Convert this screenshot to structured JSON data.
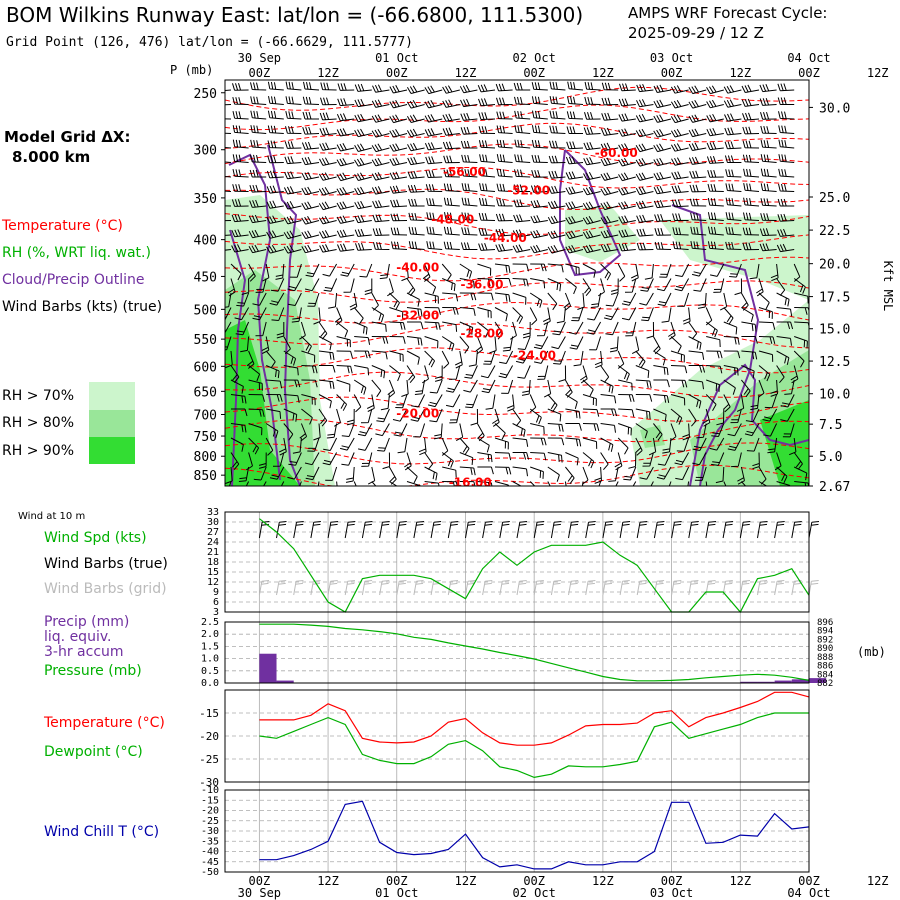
{
  "header": {
    "title": "BOM Wilkins Runway East:  lat/lon = (-66.6800, 111.5300)",
    "cycle_label": "AMPS WRF Forecast Cycle:",
    "cycle_value": "2025-09-29 / 12  Z",
    "grid_point": "Grid Point (126, 476) lat/lon = (-66.6629, 111.5777)"
  },
  "time_axis": {
    "hours": [
      "00Z",
      "12Z",
      "00Z",
      "12Z",
      "00Z",
      "12Z",
      "00Z",
      "12Z",
      "00Z",
      "12Z"
    ],
    "dates": [
      "30 Sep",
      "01 Oct",
      "02 Oct",
      "03 Oct",
      "04 Oct"
    ]
  },
  "colors": {
    "temperature": "#ff0000",
    "rh": "#00b000",
    "cloud": "#7030a0",
    "wind_chill": "#0000aa",
    "pressure": "#00b000",
    "precip": "#7030a0",
    "grid": "#aaaaaa"
  },
  "legend": {
    "model_grid": "Model Grid ΔX:",
    "model_dx": "8.000 km",
    "temperature": "Temperature (°C)",
    "rh": "RH (%, WRT liq. wat.)",
    "cloud": "Cloud/Precip Outline",
    "wind_barbs": "Wind Barbs (kts) (true)",
    "rh70": "RH > 70%",
    "rh80": "RH > 80%",
    "rh90": "RH > 90%"
  },
  "chart_data": [
    {
      "id": "upper-air",
      "type": "heatmap",
      "ylabel": "P (mb)",
      "y2label": "Kft MSL",
      "ylim": [
        880,
        240
      ],
      "pressure_ticks": [
        "250",
        "300",
        "350",
        "400",
        "450",
        "500",
        "550",
        "600",
        "650",
        "700",
        "750",
        "800",
        "850"
      ],
      "height_ticks": [
        {
          "p": 262,
          "label": "30.0"
        },
        {
          "p": 349,
          "label": "25.0"
        },
        {
          "p": 388,
          "label": "22.5"
        },
        {
          "p": 432,
          "label": "20.0"
        },
        {
          "p": 480,
          "label": "17.5"
        },
        {
          "p": 532,
          "label": "15.0"
        },
        {
          "p": 590,
          "label": "12.5"
        },
        {
          "p": 655,
          "label": "10.0"
        },
        {
          "p": 722,
          "label": "7.5"
        },
        {
          "p": 800,
          "label": "5.0"
        },
        {
          "p": 880,
          "label": "2.67"
        }
      ],
      "temperature_labels": [
        {
          "t": 0.67,
          "p": 303,
          "label": "-60.00"
        },
        {
          "t": 0.41,
          "p": 322,
          "label": "-56.00"
        },
        {
          "t": 0.52,
          "p": 342,
          "label": "-52.00"
        },
        {
          "t": 0.39,
          "p": 375,
          "label": "-48.00"
        },
        {
          "t": 0.48,
          "p": 398,
          "label": "-44.00"
        },
        {
          "t": 0.33,
          "p": 437,
          "label": "-40.00"
        },
        {
          "t": 0.44,
          "p": 462,
          "label": "-36.00"
        },
        {
          "t": 0.33,
          "p": 510,
          "label": "-32.00"
        },
        {
          "t": 0.44,
          "p": 540,
          "label": "-28.00"
        },
        {
          "t": 0.53,
          "p": 580,
          "label": "-24.00"
        },
        {
          "t": 0.33,
          "p": 698,
          "label": "-20.00"
        },
        {
          "t": 0.42,
          "p": 870,
          "label": "-16.00"
        }
      ]
    },
    {
      "id": "wind-10m",
      "type": "line",
      "title": "Wind at 10 m",
      "ylabel": "Wind Spd (kts)",
      "labels": [
        "Wind Spd (kts)",
        "Wind Barbs (true)",
        "Wind Barbs (grid)"
      ],
      "y_ticks": [
        "33",
        "30",
        "27",
        "24",
        "21",
        "18",
        "15",
        "12",
        "9",
        "6",
        "3"
      ],
      "ylim": [
        3,
        33
      ],
      "x": [
        0,
        3,
        6,
        9,
        12,
        15,
        18,
        21,
        24,
        27,
        30,
        33,
        36,
        39,
        42,
        45,
        48,
        51,
        54,
        57,
        60,
        63,
        66,
        69,
        72,
        75,
        78,
        81,
        84,
        87,
        90,
        93,
        96
      ],
      "values": [
        31,
        27,
        22,
        14,
        6,
        3,
        13,
        14,
        14,
        14,
        13,
        10,
        7,
        16,
        21,
        17,
        21,
        23,
        23,
        23,
        24,
        20,
        17,
        10,
        3,
        3,
        9,
        9,
        3,
        13,
        14,
        16,
        8
      ]
    },
    {
      "id": "precip-pressure",
      "type": "bar",
      "labels": [
        "Precip (mm)",
        "liq. equiv.",
        "3-hr accum",
        "Pressure (mb)"
      ],
      "y2label": "(mb)",
      "y_ticks": [
        "2.5",
        "2.0",
        "1.5",
        "1.0",
        "0.5",
        "0.0"
      ],
      "ylim": [
        0,
        2.5
      ],
      "pressure_ticks": [
        "896",
        "894",
        "892",
        "890",
        "888",
        "886",
        "884",
        "882"
      ],
      "pressure_lim": [
        882,
        896
      ],
      "x": [
        0,
        3,
        6,
        9,
        12,
        15,
        18,
        21,
        24,
        27,
        30,
        33,
        36,
        39,
        42,
        45,
        48,
        51,
        54,
        57,
        60,
        63,
        66,
        69,
        72,
        75,
        78,
        81,
        84,
        87,
        90,
        93,
        96
      ],
      "precip": [
        1.2,
        0.1,
        0,
        0,
        0,
        0,
        0,
        0,
        0,
        0,
        0,
        0,
        0,
        0,
        0,
        0,
        0,
        0,
        0,
        0,
        0,
        0,
        0,
        0,
        0,
        0,
        0,
        0,
        0.05,
        0.05,
        0.1,
        0.15,
        0.2
      ],
      "pressure": [
        895.5,
        895.5,
        895.5,
        895.3,
        895,
        894.5,
        894.2,
        893.8,
        893.3,
        892.5,
        892,
        891.2,
        890.5,
        889.8,
        889,
        888.3,
        887.5,
        886.5,
        885.5,
        884.5,
        883.5,
        882.8,
        882.5,
        882.5,
        882.6,
        882.8,
        883.2,
        883.5,
        883.8,
        884,
        883.8,
        883.3,
        882.6
      ]
    },
    {
      "id": "temperature",
      "type": "line",
      "labels": [
        "Temperature (°C)",
        "Dewpoint (°C)"
      ],
      "y_ticks": [
        "-15",
        "-20",
        "-25",
        "-30"
      ],
      "ylim": [
        -30,
        -10
      ],
      "x": [
        0,
        3,
        6,
        9,
        12,
        15,
        18,
        21,
        24,
        27,
        30,
        33,
        36,
        39,
        42,
        45,
        48,
        51,
        54,
        57,
        60,
        63,
        66,
        69,
        72,
        75,
        78,
        81,
        84,
        87,
        90,
        93,
        96
      ],
      "series": [
        {
          "name": "Temperature",
          "values": [
            -16.5,
            -16.5,
            -16.5,
            -15.5,
            -13,
            -14.5,
            -20.5,
            -21.3,
            -21.5,
            -21.3,
            -20,
            -17,
            -16.2,
            -19.3,
            -21.5,
            -22,
            -22,
            -21.5,
            -19.8,
            -17.8,
            -17.5,
            -17.5,
            -17.2,
            -15,
            -14.5,
            -18,
            -16,
            -15,
            -13.8,
            -12.5,
            -10.5,
            -10.5,
            -11.5
          ]
        },
        {
          "name": "Dewpoint",
          "values": [
            -20,
            -20.5,
            -19,
            -17.5,
            -16,
            -17.5,
            -24,
            -25.3,
            -26,
            -26,
            -24.5,
            -21.8,
            -21,
            -23.2,
            -26.7,
            -27.5,
            -29,
            -28.3,
            -26.5,
            -26.7,
            -26.7,
            -26.2,
            -25.5,
            -18,
            -17,
            -20.5,
            -19.5,
            -18.5,
            -17.5,
            -16,
            -15,
            -15,
            -15
          ]
        }
      ]
    },
    {
      "id": "wind-chill",
      "type": "line",
      "labels": [
        "Wind Chill T (°C)"
      ],
      "y_ticks": [
        "-10",
        "-15",
        "-20",
        "-25",
        "-30",
        "-35",
        "-40",
        "-45",
        "-50"
      ],
      "ylim": [
        -50,
        -10
      ],
      "x": [
        0,
        3,
        6,
        9,
        12,
        15,
        18,
        21,
        24,
        27,
        30,
        33,
        36,
        39,
        42,
        45,
        48,
        51,
        54,
        57,
        60,
        63,
        66,
        69,
        72,
        75,
        78,
        81,
        84,
        87,
        90,
        93,
        96
      ],
      "values": [
        -44,
        -44,
        -42,
        -39,
        -35,
        -17,
        -15.5,
        -35.5,
        -40.5,
        -41.5,
        -41,
        -39,
        -31.5,
        -43,
        -47.5,
        -46.5,
        -48.5,
        -48.5,
        -45,
        -46.5,
        -46.5,
        -45,
        -45,
        -40,
        -16,
        -16,
        -36,
        -35.5,
        -32,
        -32.5,
        -21.5,
        -29,
        -28
      ]
    }
  ]
}
